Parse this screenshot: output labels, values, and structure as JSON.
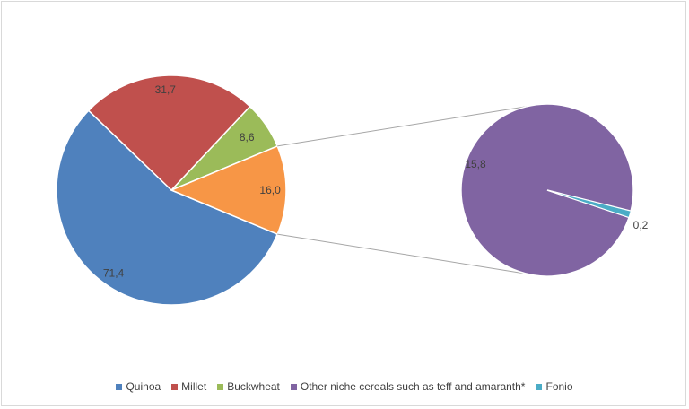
{
  "chart_data": {
    "type": "bar-of-pie",
    "title": "",
    "legend_position": "bottom",
    "series": [
      {
        "name": "Quinoa",
        "value": 71.4,
        "label": "71,4",
        "color": "#4f81bd",
        "in_secondary": false
      },
      {
        "name": "Millet",
        "value": 31.7,
        "label": "31,7",
        "color": "#c0504d",
        "in_secondary": false
      },
      {
        "name": "Buckwheat",
        "value": 8.6,
        "label": "8,6",
        "color": "#9bbb59",
        "in_secondary": false
      },
      {
        "name": "Other niche cereals such as teff and amaranth*",
        "value": 15.8,
        "label": "15,8",
        "color": "#8064a2",
        "in_secondary": true
      },
      {
        "name": "Fonio",
        "value": 0.2,
        "label": "0,2",
        "color": "#4bacc6",
        "in_secondary": true
      }
    ],
    "other_slice": {
      "value": 16.0,
      "label": "16,0",
      "color": "#f79646"
    }
  }
}
